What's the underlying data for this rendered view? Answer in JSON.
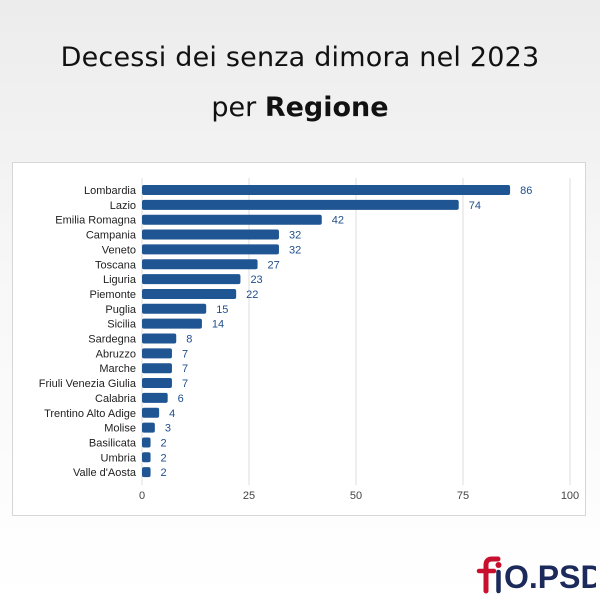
{
  "title": {
    "line1": "Decessi dei senza dimora nel 2023",
    "line2_prefix": "per",
    "line2_bold": "Regione"
  },
  "chart_data": {
    "type": "bar",
    "orientation": "horizontal",
    "categories": [
      "Lombardia",
      "Lazio",
      "Emilia Romagna",
      "Campania",
      "Veneto",
      "Toscana",
      "Liguria",
      "Piemonte",
      "Puglia",
      "Sicilia",
      "Sardegna",
      "Abruzzo",
      "Marche",
      "Friuli Venezia Giulia",
      "Calabria",
      "Trentino Alto Adige",
      "Molise",
      "Basilicata",
      "Umbria",
      "Valle d'Aosta"
    ],
    "values": [
      86,
      74,
      42,
      32,
      32,
      27,
      23,
      22,
      15,
      14,
      8,
      7,
      7,
      7,
      6,
      4,
      3,
      2,
      2,
      2
    ],
    "xlim": [
      0,
      100
    ],
    "xticks": [
      0,
      25,
      50,
      75,
      100
    ],
    "grid": true,
    "data_labels": true,
    "colors": {
      "bar": "#1f5592",
      "label": "#1f4e8c",
      "grid": "#dddddd"
    }
  },
  "logo": {
    "text_accent": "fi",
    "text_main": "O.PSD",
    "colors": {
      "accent": "#c8102e",
      "main": "#1b2a5a"
    }
  }
}
